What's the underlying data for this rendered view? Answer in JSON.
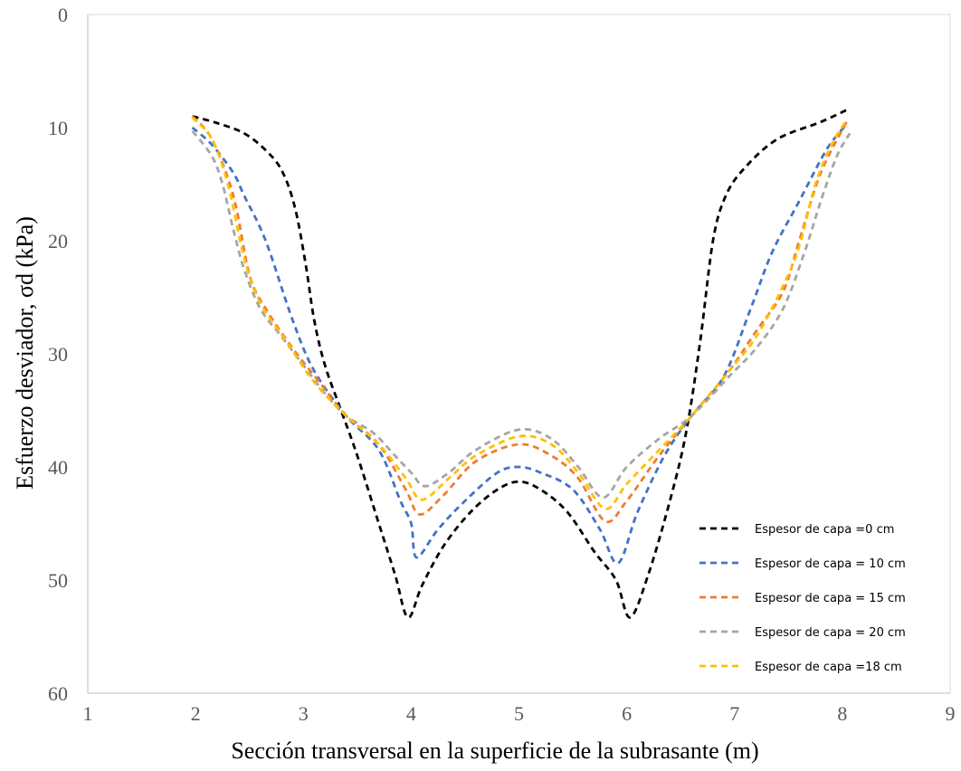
{
  "chart_data": {
    "type": "line",
    "xlabel": "Sección transversal en la superficie de la subrasante (m)",
    "ylabel": "Esfuerzo desviador, σd (kPa)",
    "xlim": [
      1,
      9
    ],
    "ylim": [
      0,
      60
    ],
    "y_inverted": true,
    "x_ticks": [
      "1",
      "2",
      "3",
      "4",
      "5",
      "6",
      "7",
      "8",
      "9"
    ],
    "y_ticks": [
      "0",
      "10",
      "20",
      "30",
      "40",
      "50",
      "60"
    ],
    "grid": false,
    "legend_position": "bottom-right",
    "line_style": "dashed",
    "series": [
      {
        "name": "Espesor de capa =0 cm",
        "color": "#000000",
        "points": [
          [
            1.97,
            9.0
          ],
          [
            2.2,
            9.6
          ],
          [
            2.45,
            10.5
          ],
          [
            2.65,
            12.0
          ],
          [
            2.8,
            13.8
          ],
          [
            2.92,
            17.0
          ],
          [
            3.02,
            22.0
          ],
          [
            3.1,
            27.0
          ],
          [
            3.2,
            31.0
          ],
          [
            3.35,
            35.0
          ],
          [
            3.5,
            39.0
          ],
          [
            3.7,
            45.0
          ],
          [
            3.85,
            49.5
          ],
          [
            3.97,
            53.3
          ],
          [
            4.1,
            50.5
          ],
          [
            4.3,
            47.0
          ],
          [
            4.55,
            44.0
          ],
          [
            4.8,
            42.0
          ],
          [
            5.0,
            41.3
          ],
          [
            5.2,
            42.0
          ],
          [
            5.45,
            44.0
          ],
          [
            5.7,
            47.5
          ],
          [
            5.9,
            50.0
          ],
          [
            6.03,
            53.3
          ],
          [
            6.2,
            49.5
          ],
          [
            6.4,
            43.0
          ],
          [
            6.55,
            37.0
          ],
          [
            6.68,
            29.0
          ],
          [
            6.8,
            20.0
          ],
          [
            6.92,
            16.0
          ],
          [
            7.1,
            13.5
          ],
          [
            7.4,
            11.0
          ],
          [
            7.8,
            9.5
          ],
          [
            8.07,
            8.3
          ]
        ]
      },
      {
        "name": "Espesor de capa = 10 cm",
        "color": "#4472C4",
        "points": [
          [
            1.97,
            10.0
          ],
          [
            2.15,
            11.5
          ],
          [
            2.35,
            14.0
          ],
          [
            2.45,
            16.0
          ],
          [
            2.65,
            20.0
          ],
          [
            2.9,
            27.0
          ],
          [
            3.1,
            31.5
          ],
          [
            3.4,
            35.5
          ],
          [
            3.7,
            38.5
          ],
          [
            3.9,
            43.0
          ],
          [
            4.0,
            45.0
          ],
          [
            4.05,
            48.0
          ],
          [
            4.25,
            45.5
          ],
          [
            4.5,
            43.0
          ],
          [
            4.8,
            40.5
          ],
          [
            5.0,
            40.0
          ],
          [
            5.2,
            40.5
          ],
          [
            5.5,
            42.0
          ],
          [
            5.75,
            45.5
          ],
          [
            5.92,
            48.5
          ],
          [
            6.1,
            44.0
          ],
          [
            6.35,
            39.0
          ],
          [
            6.6,
            35.5
          ],
          [
            6.9,
            32.0
          ],
          [
            7.15,
            26.0
          ],
          [
            7.35,
            21.0
          ],
          [
            7.6,
            16.5
          ],
          [
            7.85,
            12.0
          ],
          [
            8.03,
            9.8
          ]
        ]
      },
      {
        "name": "Espesor de capa = 15 cm",
        "color": "#ED7D31",
        "points": [
          [
            1.97,
            9.0
          ],
          [
            2.15,
            11.0
          ],
          [
            2.35,
            16.0
          ],
          [
            2.5,
            23.0
          ],
          [
            2.65,
            26.0
          ],
          [
            2.9,
            29.5
          ],
          [
            3.15,
            32.5
          ],
          [
            3.4,
            35.5
          ],
          [
            3.7,
            38.0
          ],
          [
            3.95,
            42.0
          ],
          [
            4.08,
            44.2
          ],
          [
            4.3,
            42.5
          ],
          [
            4.6,
            39.5
          ],
          [
            5.0,
            38.0
          ],
          [
            5.3,
            39.0
          ],
          [
            5.55,
            41.0
          ],
          [
            5.8,
            44.8
          ],
          [
            6.0,
            43.0
          ],
          [
            6.3,
            39.0
          ],
          [
            6.6,
            35.5
          ],
          [
            6.95,
            31.5
          ],
          [
            7.2,
            28.0
          ],
          [
            7.45,
            24.5
          ],
          [
            7.6,
            20.0
          ],
          [
            7.8,
            14.0
          ],
          [
            8.05,
            9.3
          ]
        ]
      },
      {
        "name": "Espesor de capa = 20 cm",
        "color": "#A5A5A5",
        "points": [
          [
            1.97,
            10.3
          ],
          [
            2.15,
            12.5
          ],
          [
            2.25,
            15.0
          ],
          [
            2.35,
            19.0
          ],
          [
            2.45,
            22.5
          ],
          [
            2.6,
            26.0
          ],
          [
            2.8,
            28.5
          ],
          [
            3.0,
            31.0
          ],
          [
            3.2,
            33.5
          ],
          [
            3.4,
            35.5
          ],
          [
            3.65,
            37.0
          ],
          [
            3.85,
            39.0
          ],
          [
            4.0,
            40.5
          ],
          [
            4.13,
            41.7
          ],
          [
            4.35,
            40.5
          ],
          [
            4.6,
            38.5
          ],
          [
            5.0,
            36.7
          ],
          [
            5.3,
            37.5
          ],
          [
            5.55,
            40.0
          ],
          [
            5.78,
            42.7
          ],
          [
            6.0,
            40.0
          ],
          [
            6.3,
            37.5
          ],
          [
            6.6,
            35.5
          ],
          [
            6.95,
            32.0
          ],
          [
            7.2,
            29.5
          ],
          [
            7.45,
            26.0
          ],
          [
            7.65,
            21.0
          ],
          [
            7.8,
            16.5
          ],
          [
            7.95,
            12.5
          ],
          [
            8.07,
            10.5
          ]
        ]
      },
      {
        "name": "Espesor de capa =18 cm",
        "color": "#FFC000",
        "points": [
          [
            1.97,
            9.1
          ],
          [
            2.15,
            11.0
          ],
          [
            2.3,
            15.0
          ],
          [
            2.45,
            21.5
          ],
          [
            2.6,
            25.5
          ],
          [
            2.85,
            29.0
          ],
          [
            3.1,
            32.5
          ],
          [
            3.4,
            35.5
          ],
          [
            3.7,
            38.0
          ],
          [
            3.95,
            41.0
          ],
          [
            4.1,
            42.9
          ],
          [
            4.35,
            41.0
          ],
          [
            4.6,
            39.0
          ],
          [
            5.0,
            37.3
          ],
          [
            5.3,
            38.0
          ],
          [
            5.55,
            40.5
          ],
          [
            5.8,
            43.7
          ],
          [
            6.0,
            41.5
          ],
          [
            6.3,
            38.5
          ],
          [
            6.6,
            35.5
          ],
          [
            6.95,
            31.5
          ],
          [
            7.2,
            28.5
          ],
          [
            7.45,
            24.0
          ],
          [
            7.6,
            20.5
          ],
          [
            7.75,
            15.0
          ],
          [
            7.9,
            11.5
          ],
          [
            8.03,
            9.5
          ]
        ]
      }
    ]
  }
}
